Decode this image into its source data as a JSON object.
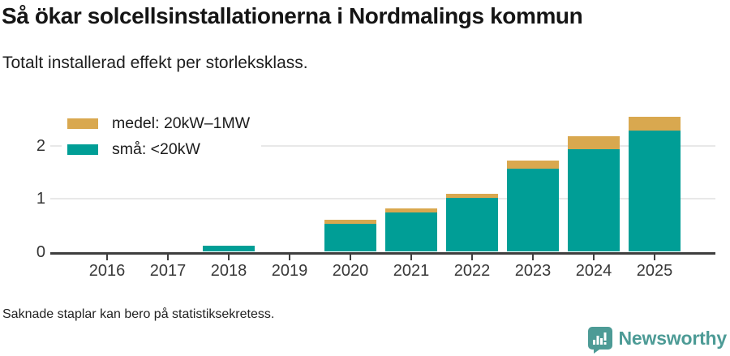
{
  "header": {
    "title": "Så ökar solcellsinstallationerna i Nordmalings kommun",
    "subtitle": "Totalt installerad effekt per storleksklass."
  },
  "chart_data": {
    "type": "bar",
    "stacked": true,
    "title": "Så ökar solcellsinstallationerna i Nordmalings kommun",
    "subtitle": "Totalt installerad effekt per storleksklass.",
    "categories": [
      "2016",
      "2017",
      "2018",
      "2019",
      "2020",
      "2021",
      "2022",
      "2023",
      "2024",
      "2025"
    ],
    "series": [
      {
        "name": "små: <20kW",
        "color": "#009e96",
        "values": [
          0,
          0,
          0.12,
          0,
          0.52,
          0.74,
          1.02,
          1.56,
          1.93,
          2.28
        ]
      },
      {
        "name": "medel: 20kW–1MW",
        "color": "#d9a84f",
        "values": [
          0,
          0,
          0,
          0,
          0.08,
          0.07,
          0.07,
          0.15,
          0.24,
          0.26
        ]
      }
    ],
    "legend": [
      {
        "label": "medel: 20kW–1MW",
        "color": "#d9a84f"
      },
      {
        "label": "små: <20kW",
        "color": "#009e96"
      }
    ],
    "yticks": [
      0,
      1,
      2
    ],
    "ylim": [
      0,
      2.7
    ],
    "xlabel": "",
    "ylabel": "",
    "grid": "horizontal",
    "legend_position": "top-left"
  },
  "footer": {
    "note": "Saknade staplar kan bero på statistiksekretess."
  },
  "branding": {
    "name": "Newsworthy",
    "color": "#4d9b96",
    "logo": "speech-bubble-bar-chart-icon"
  },
  "colors": {
    "bar_small": "#009e96",
    "bar_medium": "#d9a84f",
    "axis": "#3e3e3e",
    "gridline": "#e8e8e8",
    "title_text": "#151515",
    "body_text": "#222222",
    "brand_teal": "#4d9b96"
  }
}
